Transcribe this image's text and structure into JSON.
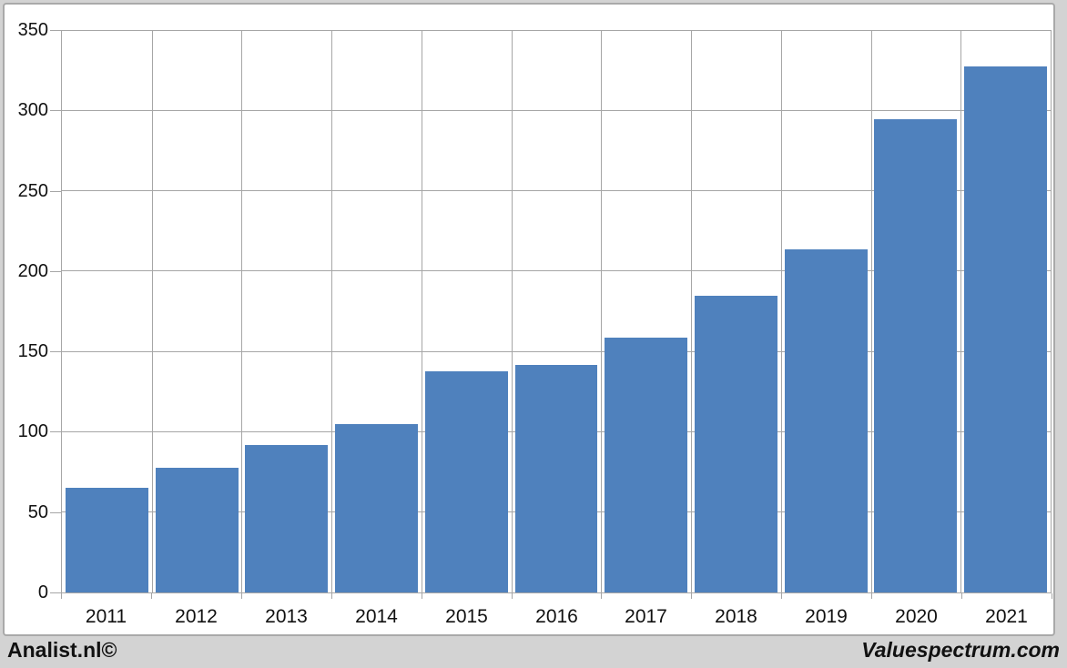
{
  "chart_data": {
    "type": "bar",
    "title": "",
    "xlabel": "",
    "ylabel": "",
    "categories": [
      "2011",
      "2012",
      "2013",
      "2014",
      "2015",
      "2016",
      "2017",
      "2018",
      "2019",
      "2020",
      "2021"
    ],
    "values": [
      65,
      78,
      92,
      105,
      138,
      142,
      159,
      185,
      214,
      295,
      328
    ],
    "ylim": [
      0,
      350
    ],
    "yticks": [
      0,
      50,
      100,
      150,
      200,
      250,
      300,
      350
    ],
    "grid": true,
    "legend_position": "none",
    "bar_gap_fraction": 0.08
  },
  "colors": {
    "bar": "#4f81bd",
    "grid": "#a6a6a6",
    "axis": "#a6a6a6",
    "frame_border": "#a9a9a9",
    "chart_background": "#ffffff",
    "page_background": "#d3d3d3",
    "text": "#111111"
  },
  "footer": {
    "left_brand": "Analist.nl©",
    "right_brand": "Valuespectrum.com"
  }
}
